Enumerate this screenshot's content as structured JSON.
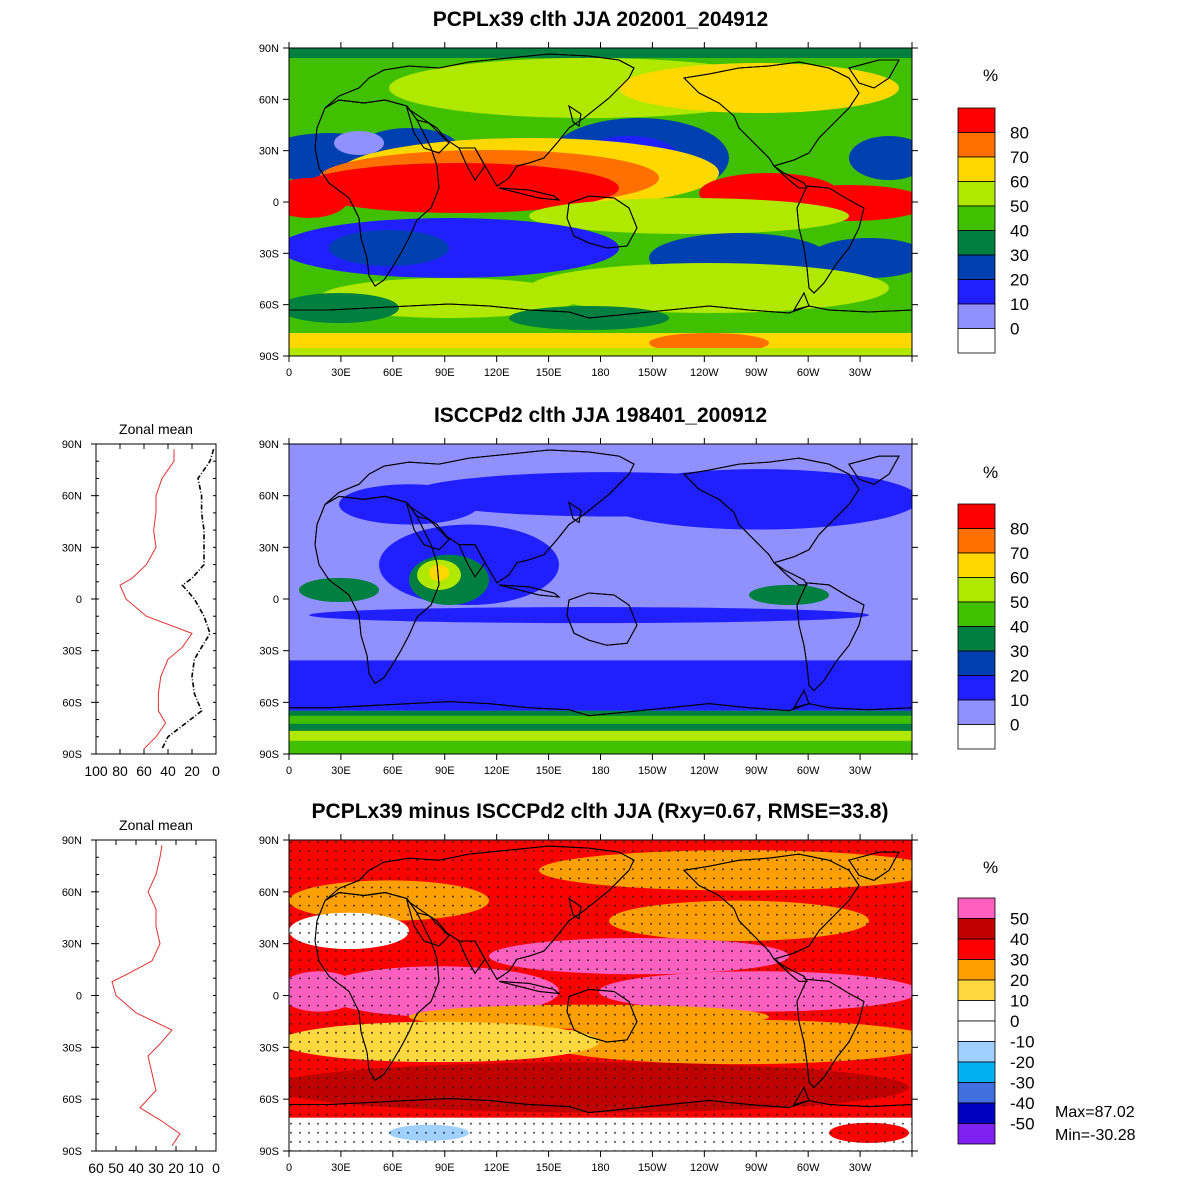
{
  "panels": [
    {
      "title": "PCPLx39 clth JJA 202001_204912",
      "units": "%",
      "colorbar_labels": [
        "80",
        "70",
        "60",
        "50",
        "40",
        "30",
        "20",
        "10",
        "0"
      ],
      "colorbar_colors": [
        "#ff0000",
        "#ff7000",
        "#ffd800",
        "#b0e800",
        "#40c000",
        "#008040",
        "#0040b0",
        "#2020ff",
        "#9090ff",
        "#ffffff"
      ]
    },
    {
      "title": "ISCCPd2 clth JJA 198401_200912",
      "units": "%",
      "colorbar_labels": [
        "80",
        "70",
        "60",
        "50",
        "40",
        "30",
        "20",
        "10",
        "0"
      ],
      "colorbar_colors": [
        "#ff0000",
        "#ff7000",
        "#ffd800",
        "#b0e800",
        "#40c000",
        "#008040",
        "#0040b0",
        "#2020ff",
        "#9090ff",
        "#ffffff"
      ]
    },
    {
      "title": "PCPLx39 minus ISCCPd2 clth JJA (Rxy=0.67, RMSE=33.8)",
      "units": "%",
      "colorbar_labels": [
        "50",
        "40",
        "30",
        "20",
        "10",
        "0",
        "-10",
        "-20",
        "-30",
        "-40",
        "-50"
      ],
      "colorbar_colors": [
        "#ff60c0",
        "#c00000",
        "#ff0000",
        "#ffa000",
        "#ffd840",
        "#ffffff",
        "#ffffff",
        "#a0d0ff",
        "#00b0f0",
        "#4070e0",
        "#0000c0",
        "#8020f0"
      ]
    }
  ],
  "map_axes": {
    "lon_labels": [
      "0",
      "30E",
      "60E",
      "90E",
      "120E",
      "150E",
      "180",
      "150W",
      "120W",
      "90W",
      "60W",
      "30W"
    ],
    "lat_labels": [
      "90N",
      "60N",
      "30N",
      "0",
      "30S",
      "60S",
      "90S"
    ]
  },
  "zonal_mean": {
    "title": "Zonal mean",
    "top_xlabels": [
      "100",
      "80",
      "60",
      "40",
      "20",
      "0"
    ],
    "bottom_xlabels": [
      "60",
      "50",
      "40",
      "30",
      "20",
      "10",
      "0"
    ],
    "lat_labels": [
      "90N",
      "60N",
      "30N",
      "0",
      "30S",
      "60S",
      "90S"
    ]
  },
  "stats": {
    "max": "Max=87.02",
    "min": "Min=-30.28"
  },
  "chart_data": [
    {
      "type": "line",
      "title": "Zonal mean",
      "xlim": [
        100,
        0
      ],
      "ylim": [
        -90,
        90
      ],
      "series": [
        {
          "color": "#e03030",
          "style": "solid",
          "lat": [
            87,
            80,
            70,
            60,
            50,
            40,
            30,
            20,
            12,
            8,
            0,
            -10,
            -20,
            -28,
            -35,
            -45,
            -55,
            -65,
            -72,
            -80,
            -87
          ],
          "values": [
            35,
            35,
            45,
            50,
            50,
            52,
            50,
            58,
            70,
            80,
            75,
            58,
            20,
            28,
            40,
            46,
            48,
            48,
            42,
            50,
            60
          ]
        },
        {
          "color": "#000000",
          "style": "dashed",
          "lat": [
            87,
            80,
            70,
            60,
            50,
            40,
            30,
            20,
            12,
            8,
            0,
            -10,
            -20,
            -28,
            -35,
            -45,
            -55,
            -65,
            -72,
            -80,
            -87
          ],
          "values": [
            2,
            5,
            15,
            12,
            12,
            10,
            10,
            10,
            20,
            28,
            18,
            10,
            5,
            12,
            18,
            20,
            18,
            12,
            25,
            40,
            45
          ]
        }
      ]
    },
    {
      "type": "line",
      "title": "Zonal mean",
      "xlim": [
        60,
        0
      ],
      "ylim": [
        -90,
        90
      ],
      "series": [
        {
          "color": "#e03030",
          "style": "solid",
          "lat": [
            87,
            80,
            70,
            60,
            50,
            40,
            30,
            20,
            12,
            8,
            0,
            -10,
            -20,
            -28,
            -35,
            -45,
            -55,
            -65,
            -72,
            -80,
            -87
          ],
          "values": [
            27,
            28,
            30,
            34,
            30,
            30,
            28,
            32,
            45,
            52,
            50,
            40,
            22,
            28,
            34,
            32,
            30,
            38,
            28,
            18,
            22
          ]
        }
      ]
    }
  ]
}
